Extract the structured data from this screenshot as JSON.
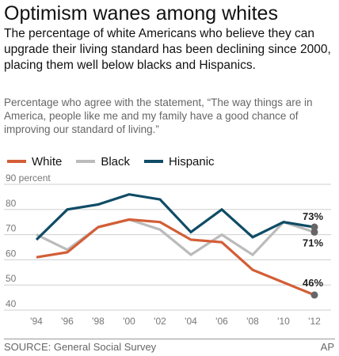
{
  "title": "Optimism wanes among whites",
  "subtitle": "The percentage of white Americans who believe they can upgrade their living standard has been declining since 2000, placing them well below blacks and Hispanics.",
  "note": "Percentage who agree with the statement, “The way things are in America, people like me and my family have a good chance of improving our standard of living.”",
  "source": "SOURCE: General Social Survey",
  "credit": "AP",
  "chart_data": {
    "type": "line",
    "x": [
      "'94",
      "'96",
      "'98",
      "'00",
      "'02",
      "'04",
      "'06",
      "'08",
      "'10",
      "'12"
    ],
    "ylim": [
      40,
      90
    ],
    "yticks": [
      "40",
      "50",
      "60",
      "70",
      "80",
      "90 percent"
    ],
    "ytick_values": [
      40,
      50,
      60,
      70,
      80,
      90
    ],
    "grid": true,
    "legend_position": "top-left",
    "series": [
      {
        "name": "White",
        "color": "#d35e36",
        "values": [
          61,
          63,
          73,
          76,
          75,
          68,
          67,
          56,
          51,
          46
        ]
      },
      {
        "name": "Black",
        "color": "#bbbbbb",
        "values": [
          70,
          64,
          73,
          76,
          72,
          62,
          70,
          62,
          75,
          71
        ]
      },
      {
        "name": "Hispanic",
        "color": "#0f4c66",
        "values": [
          68,
          80,
          82,
          86,
          84,
          71,
          80,
          69,
          75,
          73
        ]
      }
    ],
    "end_labels": [
      {
        "series": "Hispanic",
        "text": "73%"
      },
      {
        "series": "Black",
        "text": "71%"
      },
      {
        "series": "White",
        "text": "46%"
      }
    ],
    "marker_color": "#666666"
  }
}
